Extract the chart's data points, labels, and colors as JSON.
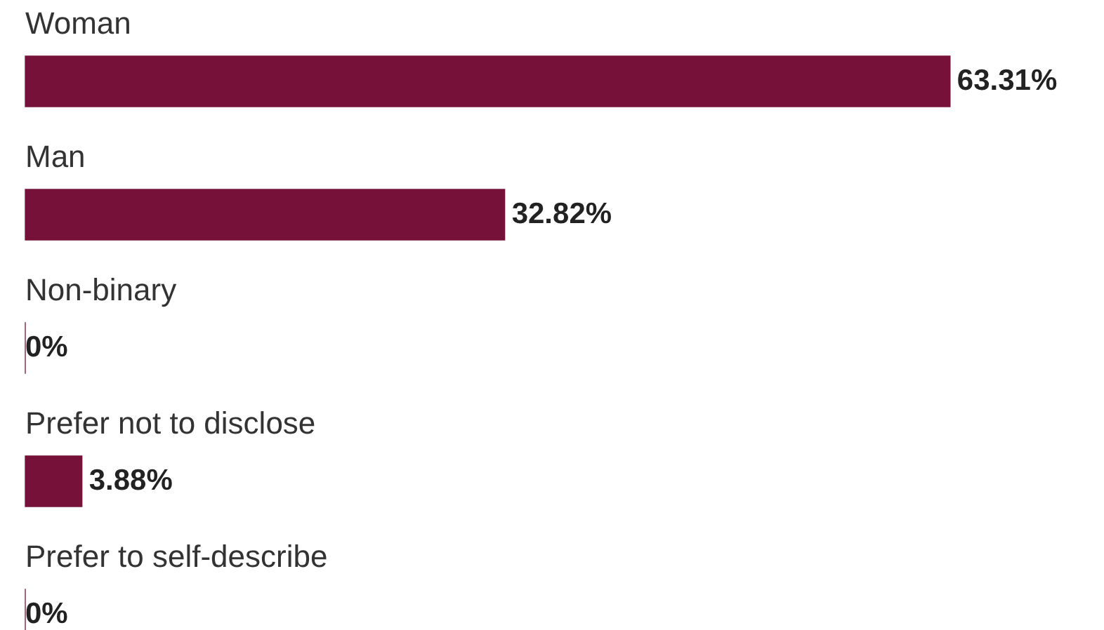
{
  "chart_data": {
    "type": "bar",
    "orientation": "horizontal",
    "categories": [
      "Woman",
      "Man",
      "Non-binary",
      "Prefer not to disclose",
      "Prefer to self-describe"
    ],
    "values": [
      63.31,
      32.82,
      0,
      3.88,
      0
    ],
    "value_labels": [
      "63.31%",
      "32.82%",
      "0%",
      "3.88%",
      "0%"
    ],
    "color": "#76123a",
    "tick_labels": "y",
    "legend": false
  }
}
